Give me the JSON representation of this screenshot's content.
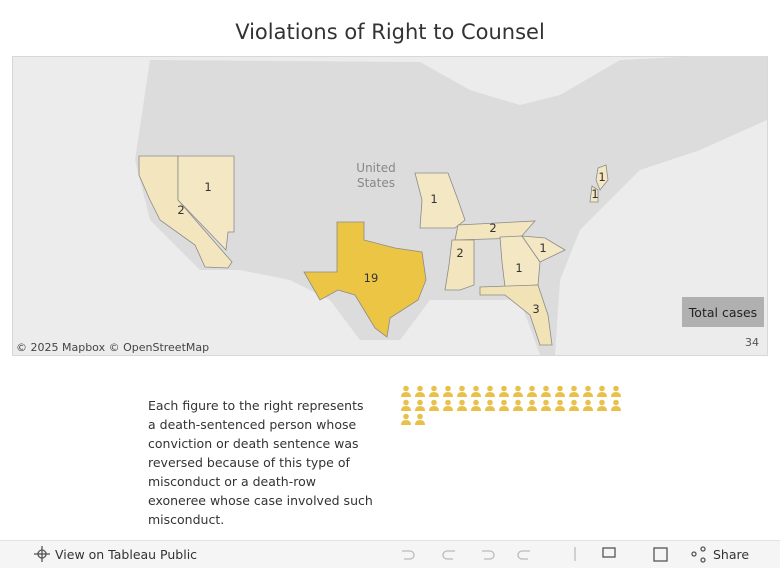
{
  "header": {
    "title": "Violations of Right to Counsel"
  },
  "map": {
    "country_label": "United States",
    "attribution": "© 2025 Mapbox © OpenStreetMap",
    "values": [
      2,
      1,
      19,
      1,
      2,
      2,
      1,
      1,
      3,
      1,
      1
    ],
    "color_low": "#f3e7c4",
    "color_high": "#ecc545",
    "legend_title": "Total cases",
    "total": 34
  },
  "figures": {
    "caption": "Each figure to the right represents a death-sentenced person whose conviction or death sentence was reversed because of this type of misconduct or a death-row exoneree whose case involved such misconduct.",
    "color": "#e8c04a"
  },
  "footer": {
    "view": "View on Tableau Public",
    "share": "Share"
  }
}
